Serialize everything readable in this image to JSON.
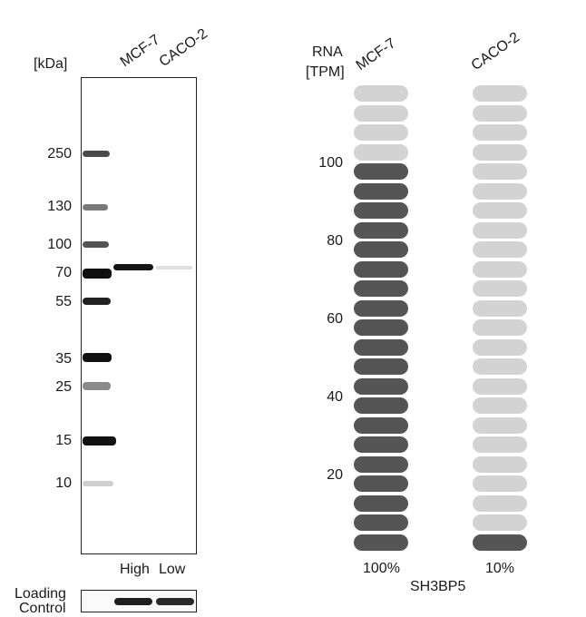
{
  "western_blot": {
    "unit_label": "[kDa]",
    "lanes": [
      "MCF-7",
      "CACO-2"
    ],
    "markers": [
      "250",
      "130",
      "100",
      "70",
      "55",
      "35",
      "25",
      "15",
      "10"
    ],
    "lane_levels": [
      "High",
      "Low"
    ],
    "loading_control": [
      "Loading",
      "Control"
    ]
  },
  "rna": {
    "axis_title": [
      "RNA",
      "[TPM]"
    ],
    "gene": "SH3BP5",
    "ticks": [
      "100",
      "80",
      "60",
      "40",
      "20"
    ]
  },
  "chart_data": {
    "type": "bar",
    "title": "",
    "ylabel": "RNA [TPM]",
    "categories": [
      "MCF-7",
      "CACO-2"
    ],
    "values_percent": [
      100,
      10
    ],
    "value_labels": [
      "100%",
      "10%"
    ],
    "filled_segments": [
      20,
      1
    ],
    "total_segments": 24,
    "y_ticks": [
      20,
      40,
      60,
      80,
      100
    ],
    "colors": {
      "filled": "#555555",
      "empty": "#d3d3d3"
    }
  }
}
